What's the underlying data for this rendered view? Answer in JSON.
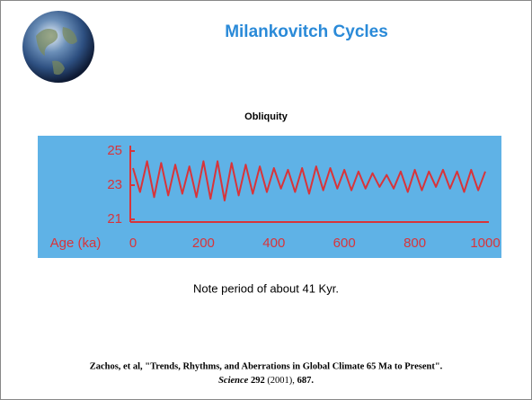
{
  "title": "Milankovitch Cycles",
  "note": "Note period of about 41 Kyr.",
  "citation": {
    "line1": "Zachos, et al, \"Trends, Rhythms, and Aberrations in Global Climate 65 Ma to Present\".",
    "journal": "Science",
    "volume": "292",
    "year": "(2001),",
    "page": "687."
  },
  "chart_data": {
    "type": "line",
    "title": "Obliquity",
    "x_label": "Age (ka)",
    "x": [
      0,
      20,
      40,
      60,
      80,
      100,
      120,
      140,
      160,
      180,
      200,
      220,
      240,
      260,
      280,
      300,
      320,
      340,
      360,
      380,
      400,
      420,
      440,
      460,
      480,
      500,
      520,
      540,
      560,
      580,
      600,
      620,
      640,
      660,
      680,
      700,
      720,
      740,
      760,
      780,
      800,
      820,
      840,
      860,
      880,
      900,
      920,
      940,
      960,
      980,
      1000
    ],
    "series": [
      {
        "name": "Obliquity",
        "color": "#d8343a",
        "values": [
          24.0,
          22.6,
          24.4,
          22.3,
          24.3,
          22.4,
          24.2,
          22.5,
          24.1,
          22.3,
          24.4,
          22.2,
          24.4,
          22.1,
          24.3,
          22.4,
          24.2,
          22.5,
          24.1,
          22.6,
          24.0,
          22.8,
          23.9,
          22.6,
          24.0,
          22.5,
          24.1,
          22.7,
          24.0,
          22.8,
          23.9,
          22.7,
          23.8,
          22.8,
          23.7,
          22.9,
          23.6,
          22.8,
          23.8,
          22.6,
          23.9,
          22.7,
          23.8,
          22.9,
          23.9,
          22.8,
          23.8,
          22.6,
          23.9,
          22.7,
          23.8
        ]
      }
    ],
    "xlim": [
      0,
      1000
    ],
    "xticks": [
      0,
      200,
      400,
      600,
      800,
      1000
    ],
    "ylim": [
      21,
      25
    ],
    "yticks": [
      21,
      23,
      25
    ],
    "background": "#5fb2e6",
    "grid": false
  }
}
